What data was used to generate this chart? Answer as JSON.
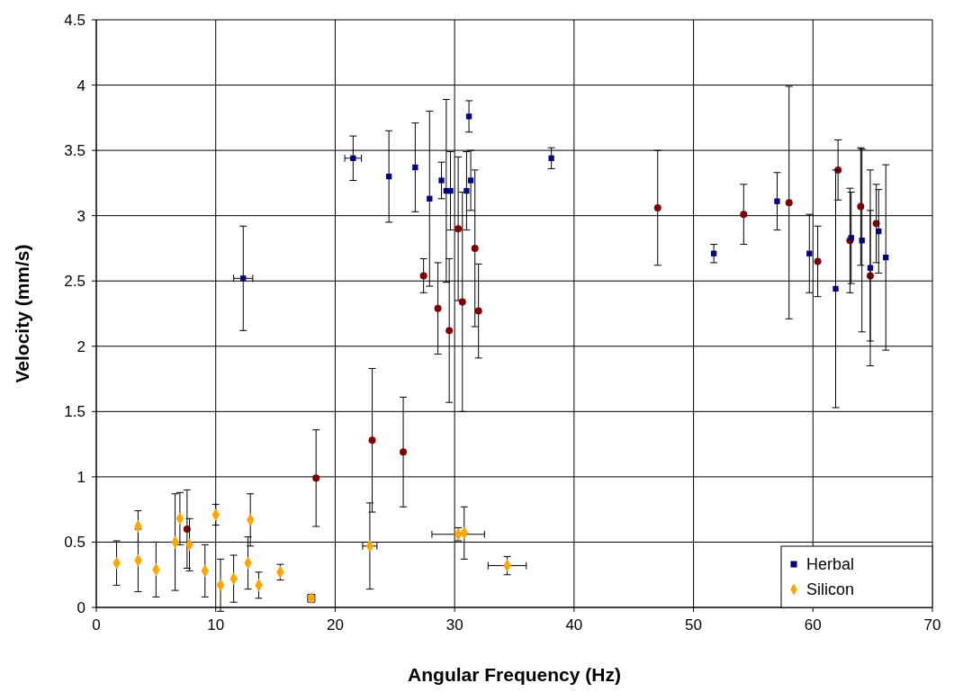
{
  "chart_data": {
    "type": "scatter",
    "xlabel": "Angular Frequency (Hz)",
    "ylabel": "Velocity (mm/s)",
    "xlim": [
      0,
      70
    ],
    "ylim": [
      0,
      4.5
    ],
    "xticks": [
      0,
      10,
      20,
      30,
      40,
      50,
      60,
      70
    ],
    "yticks": [
      0,
      0.5,
      1,
      1.5,
      2,
      2.5,
      3,
      3.5,
      4,
      4.5
    ],
    "grid": true,
    "legend": "bottom right",
    "series": [
      {
        "color": "#800000",
        "marker": "circle",
        "x": [
          7.6,
          18.4,
          23.1,
          25.7,
          27.4,
          28.6,
          29.55,
          30.3,
          30.65,
          31.7,
          32.0,
          47.0,
          54.2,
          58.0,
          62.1,
          60.4,
          63.1,
          64.0,
          64.8,
          65.3
        ],
        "values": [
          0.6,
          0.99,
          1.28,
          1.19,
          2.54,
          2.29,
          2.12,
          2.9,
          2.34,
          2.75,
          2.27,
          3.06,
          3.01,
          3.1,
          3.35,
          2.65,
          2.81,
          3.07,
          2.54,
          2.94
        ],
        "errors": [
          0.3,
          0.37,
          0.55,
          0.42,
          0.13,
          0.35,
          0.55,
          0.55,
          0.84,
          0.6,
          0.36,
          0.44,
          0.23,
          0.89,
          0.23,
          0.27,
          0.4,
          0.45,
          0.5,
          0.3
        ]
      },
      {
        "name": "Herbal",
        "color": "#000080",
        "marker": "square",
        "x": [
          12.3,
          21.5,
          24.5,
          26.7,
          27.9,
          28.9,
          29.3,
          29.65,
          31.0,
          31.35,
          31.2,
          38.1,
          51.7,
          57.0,
          59.7,
          61.9,
          63.2,
          64.1,
          64.8,
          65.5,
          66.1
        ],
        "values": [
          2.52,
          3.44,
          3.3,
          3.37,
          3.13,
          3.27,
          3.19,
          3.19,
          3.19,
          3.27,
          3.76,
          3.44,
          2.71,
          3.11,
          2.71,
          2.44,
          2.83,
          2.81,
          2.6,
          2.88,
          2.68
        ],
        "errors": [
          0.4,
          0.17,
          0.35,
          0.34,
          0.67,
          0.14,
          0.7,
          0.3,
          0.3,
          0.23,
          0.12,
          0.08,
          0.07,
          0.22,
          0.3,
          0.91,
          0.35,
          0.7,
          0.75,
          0.32,
          0.71
        ],
        "xerrors": [
          0.8,
          0.7,
          null,
          null,
          null,
          null,
          null,
          null,
          null,
          null,
          null,
          null,
          null,
          null,
          null,
          null,
          null,
          null,
          null,
          null,
          null
        ]
      },
      {
        "name": "Silicon",
        "color": "#ffa500",
        "marker": "diamond",
        "x": [
          1.7,
          3.5,
          3.5,
          5.0,
          6.6,
          7.0,
          7.8,
          9.1,
          10.0,
          10.4,
          11.5,
          12.7,
          12.9,
          13.6,
          15.4,
          18.0,
          22.9,
          30.3,
          30.8,
          34.4
        ],
        "values": [
          0.34,
          0.62,
          0.36,
          0.29,
          0.5,
          0.68,
          0.48,
          0.28,
          0.71,
          0.17,
          0.22,
          0.34,
          0.67,
          0.17,
          0.27,
          0.07,
          0.47,
          0.56,
          0.57,
          0.32
        ],
        "errors": [
          0.17,
          0.12,
          0.24,
          0.21,
          0.37,
          0.2,
          0.2,
          0.2,
          0.08,
          0.2,
          0.18,
          0.2,
          0.2,
          0.1,
          0.06,
          0.03,
          0.33,
          0.05,
          0.2,
          0.07
        ],
        "xerrors": [
          null,
          null,
          null,
          null,
          null,
          null,
          null,
          null,
          null,
          null,
          null,
          null,
          null,
          null,
          null,
          0.3,
          0.6,
          2.2,
          null,
          1.6
        ]
      }
    ]
  }
}
